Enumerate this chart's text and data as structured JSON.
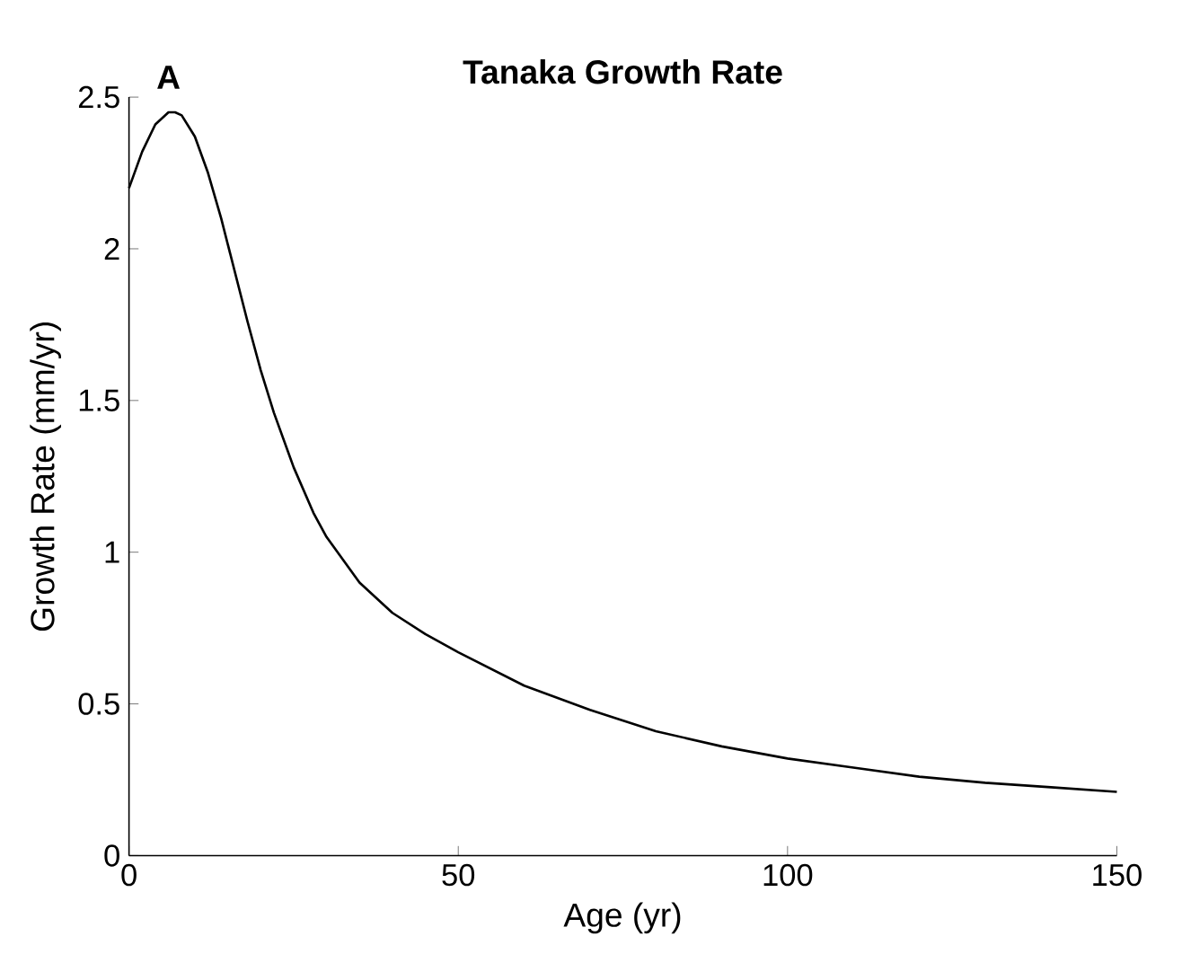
{
  "chart_data": {
    "type": "line",
    "title": "Tanaka Growth Rate",
    "xlabel": "Age (yr)",
    "ylabel": "Growth Rate (mm/yr)",
    "annotations": [
      "A"
    ],
    "x": [
      0,
      2,
      4,
      6,
      7,
      8,
      10,
      12,
      14,
      16,
      18,
      20,
      22,
      25,
      28,
      30,
      35,
      40,
      45,
      50,
      60,
      70,
      80,
      90,
      100,
      110,
      120,
      130,
      140,
      150
    ],
    "series": [
      {
        "color": "#000000",
        "values": [
          2.2,
          2.32,
          2.41,
          2.45,
          2.45,
          2.44,
          2.37,
          2.25,
          2.1,
          1.93,
          1.76,
          1.6,
          1.46,
          1.28,
          1.13,
          1.05,
          0.9,
          0.8,
          0.73,
          0.67,
          0.56,
          0.48,
          0.41,
          0.36,
          0.32,
          0.29,
          0.26,
          0.24,
          0.225,
          0.21
        ]
      }
    ],
    "xlim": [
      0,
      150
    ],
    "xticks": [
      0,
      50,
      100,
      150
    ],
    "ylim": [
      0,
      2.5
    ],
    "yticks": [
      0,
      0.5,
      1,
      1.5,
      2,
      2.5
    ],
    "grid": false,
    "marker": "none",
    "line_style": "solid"
  }
}
